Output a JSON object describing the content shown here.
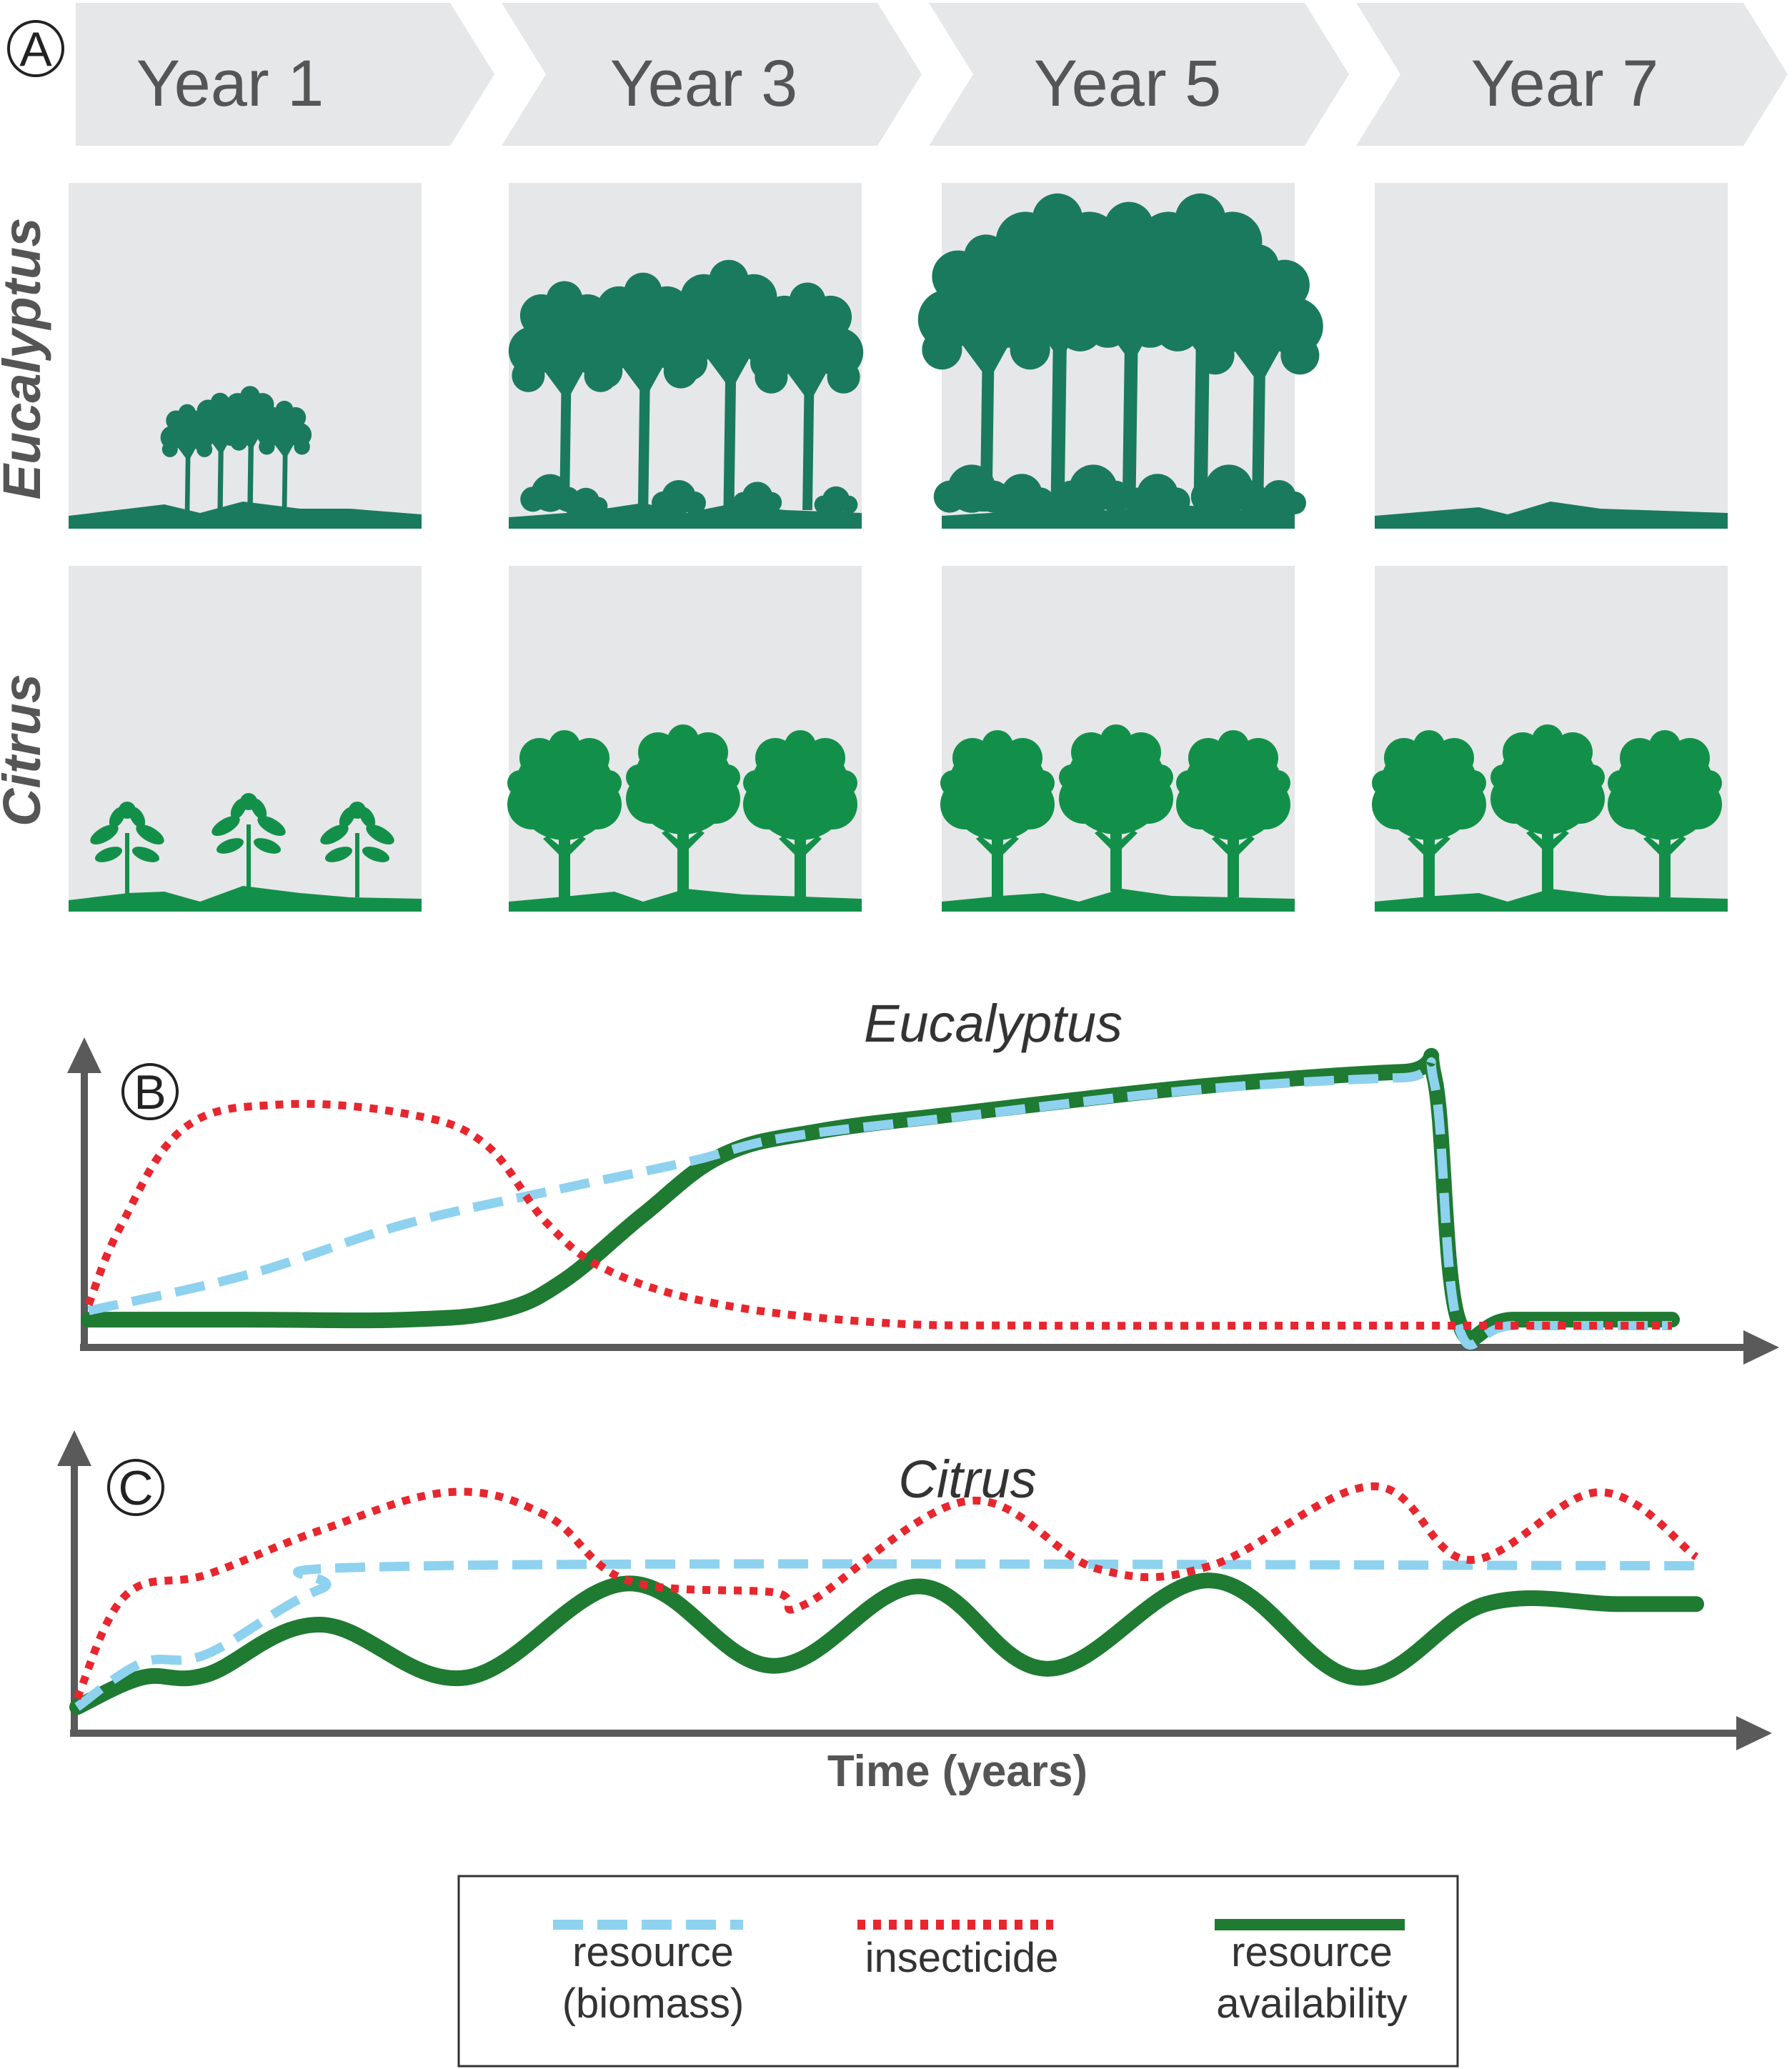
{
  "panel_a": {
    "letter": "A",
    "years": [
      "Year 1",
      "Year 3",
      "Year 5",
      "Year 7"
    ],
    "rows": [
      {
        "label": "Eucalyptus",
        "stages": [
          "saplings",
          "young-forest",
          "mature-forest",
          "cleared"
        ]
      },
      {
        "label": "Citrus",
        "stages": [
          "seedlings",
          "trees",
          "trees",
          "trees"
        ]
      }
    ]
  },
  "colors": {
    "eucalyptus_green": "#1a7a5e",
    "citrus_green": "#12904a",
    "panel_bg": "#e6e7e8",
    "axis": "#5a5a5a",
    "biomass": "#8ed2ef",
    "insecticide": "#e8262e",
    "availability": "#1f7a32"
  },
  "chart_data": [
    {
      "panel": "B",
      "type": "line",
      "title": "Eucalyptus",
      "xlabel": "",
      "ylabel": "",
      "xlim": [
        0,
        10
      ],
      "ylim": [
        0,
        10
      ],
      "series": [
        {
          "key": "biomass",
          "x": [
            0,
            1.0,
            2.0,
            3.0,
            3.8,
            4.4,
            5.5,
            7.0,
            8.3,
            8.5,
            8.65,
            9.0,
            10.0
          ],
          "y": [
            0.8,
            2.0,
            3.7,
            4.9,
            5.8,
            6.6,
            7.3,
            8.2,
            8.6,
            8.4,
            0.3,
            0.3,
            0.3
          ]
        },
        {
          "key": "insecticide",
          "x": [
            0,
            0.2,
            0.6,
            1.2,
            2.0,
            2.5,
            2.9,
            3.3,
            4.0,
            5.0,
            6.0,
            8.0,
            10.0
          ],
          "y": [
            1.0,
            3.6,
            6.9,
            7.7,
            7.4,
            6.4,
            3.7,
            2.1,
            1.0,
            0.4,
            0.3,
            0.3,
            0.3
          ]
        },
        {
          "key": "availability",
          "x": [
            0,
            1.0,
            2.0,
            2.6,
            3.0,
            3.5,
            4.0,
            4.6,
            5.5,
            7.0,
            8.3,
            8.5,
            8.65,
            9.0,
            10.0
          ],
          "y": [
            0.5,
            0.5,
            0.5,
            0.8,
            1.8,
            4.0,
            6.0,
            6.8,
            7.4,
            8.3,
            8.8,
            8.6,
            0.5,
            0.5,
            0.5
          ]
        }
      ]
    },
    {
      "panel": "C",
      "type": "line",
      "title": "Citrus",
      "xlabel": "Time (years)",
      "ylabel": "",
      "xlim": [
        0,
        10
      ],
      "ylim": [
        0,
        10
      ],
      "series": [
        {
          "key": "biomass",
          "x": [
            0,
            0.4,
            0.8,
            1.5,
            2.2,
            10.0
          ],
          "y": [
            0.5,
            2.0,
            2.3,
            4.5,
            5.3,
            5.3
          ]
        },
        {
          "key": "insecticide",
          "x": [
            0,
            0.3,
            0.8,
            1.5,
            2.3,
            2.9,
            3.4,
            4.3,
            4.5,
            5.5,
            6.3,
            7.0,
            8.0,
            8.6,
            9.4,
            10.0
          ],
          "y": [
            0.8,
            4.3,
            5.0,
            6.5,
            7.8,
            7.0,
            4.8,
            4.4,
            4.0,
            7.5,
            5.2,
            5.3,
            8.0,
            5.5,
            7.8,
            5.6
          ]
        },
        {
          "key": "availability",
          "x": [
            0,
            0.4,
            0.8,
            1.5,
            2.4,
            3.4,
            4.3,
            5.2,
            6.0,
            7.0,
            7.9,
            8.7,
            9.5,
            10.0
          ],
          "y": [
            0.5,
            1.5,
            1.6,
            3.3,
            1.5,
            4.7,
            1.9,
            4.6,
            1.8,
            4.8,
            1.5,
            4.0,
            4.0,
            4.0
          ]
        }
      ]
    }
  ],
  "legend": {
    "items": [
      {
        "key": "biomass",
        "lines": [
          "resource",
          "(biomass)"
        ]
      },
      {
        "key": "insecticide",
        "lines": [
          "insecticide"
        ]
      },
      {
        "key": "availability",
        "lines": [
          "resource",
          "availability"
        ]
      }
    ]
  }
}
